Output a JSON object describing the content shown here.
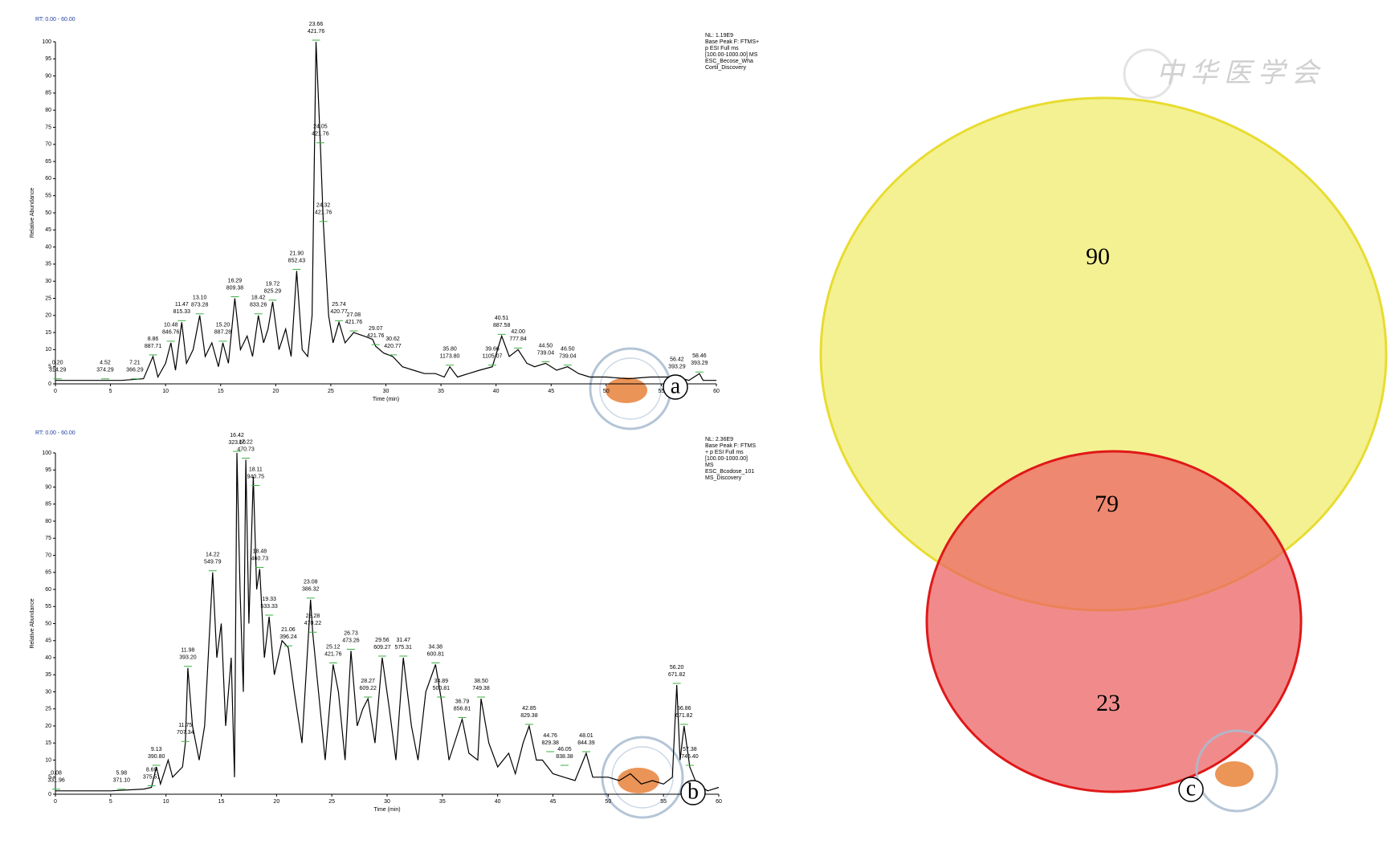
{
  "chart_data": [
    {
      "type": "line",
      "title": "RT: 0.00 - 60.00",
      "xlabel": "Time (min)",
      "ylabel": "Relative Abundance",
      "panel": "a",
      "info": [
        "NL: 1.19E9",
        "Base Peak F: FTMS+",
        "p ESI Full ms",
        "[100.00-1000.00] MS",
        "ESC_Becose_Wha",
        "Cortil_Discovery"
      ],
      "color": "#000000",
      "xlim": [
        0,
        60
      ],
      "ylim": [
        0,
        100
      ],
      "xticks": [
        0,
        5,
        10,
        15,
        20,
        25,
        30,
        35,
        40,
        45,
        50,
        55,
        60
      ],
      "yticks": [
        0,
        5,
        10,
        15,
        20,
        25,
        30,
        35,
        40,
        45,
        50,
        55,
        60,
        65,
        70,
        75,
        80,
        85,
        90,
        95,
        100
      ],
      "x": [
        0,
        3,
        6,
        8,
        8.86,
        9.3,
        10.0,
        10.48,
        10.9,
        11.47,
        11.9,
        12.5,
        13.1,
        13.6,
        14.2,
        14.8,
        15.2,
        15.7,
        16.29,
        16.8,
        17.4,
        17.9,
        18.42,
        18.9,
        19.3,
        19.72,
        20.3,
        20.9,
        21.4,
        21.9,
        22.4,
        22.9,
        23.3,
        23.66,
        24.05,
        24.32,
        24.8,
        25.2,
        25.74,
        26.3,
        27.08,
        28,
        28.8,
        29.07,
        29.8,
        30.62,
        31.5,
        32.5,
        33.5,
        34.5,
        35.3,
        35.8,
        36.5,
        37.5,
        38.5,
        39.66,
        40.51,
        41.2,
        42.0,
        42.8,
        43.5,
        44.5,
        45.5,
        46.5,
        47.5,
        48.5,
        50,
        52,
        54,
        56.42,
        57.5,
        58.46,
        58.8,
        60
      ],
      "values": [
        1,
        1,
        1,
        1.5,
        8,
        2,
        6,
        12,
        4,
        18,
        6,
        10,
        20,
        8,
        12,
        5,
        12,
        6,
        25,
        10,
        14,
        8,
        20,
        12,
        16,
        24,
        10,
        16,
        8,
        33,
        10,
        8,
        20,
        100,
        70,
        47,
        20,
        12,
        18,
        12,
        15,
        14,
        13,
        11,
        9,
        8,
        5,
        4,
        3,
        3,
        2,
        5,
        2,
        3,
        4,
        5,
        14,
        8,
        10,
        6,
        5,
        6,
        4,
        5,
        3,
        2,
        2,
        1.5,
        2,
        2,
        1,
        3,
        1,
        1
      ],
      "annotations": [
        {
          "x": 0.2,
          "y": 1,
          "text": [
            "0.20",
            "314.29"
          ]
        },
        {
          "x": 4.52,
          "y": 1,
          "text": [
            "4.52",
            "374.29"
          ]
        },
        {
          "x": 7.21,
          "y": 1,
          "text": [
            "7.21",
            "366.29"
          ]
        },
        {
          "x": 8.86,
          "y": 8,
          "text": [
            "8.86",
            "887.71"
          ]
        },
        {
          "x": 10.48,
          "y": 12,
          "text": [
            "10.48",
            "846.76"
          ]
        },
        {
          "x": 11.47,
          "y": 18,
          "text": [
            "11.47",
            "815.33"
          ]
        },
        {
          "x": 13.1,
          "y": 20,
          "text": [
            "13.10",
            "873.28"
          ]
        },
        {
          "x": 15.2,
          "y": 12,
          "text": [
            "15.20",
            "887.28"
          ]
        },
        {
          "x": 16.29,
          "y": 25,
          "text": [
            "16.29",
            "809.38"
          ]
        },
        {
          "x": 18.42,
          "y": 20,
          "text": [
            "18.42",
            "833.26"
          ]
        },
        {
          "x": 19.72,
          "y": 24,
          "text": [
            "19.72",
            "825.29"
          ]
        },
        {
          "x": 21.9,
          "y": 33,
          "text": [
            "21.90",
            "852.43"
          ]
        },
        {
          "x": 23.66,
          "y": 100,
          "text": [
            "23.66",
            "421.76"
          ]
        },
        {
          "x": 24.05,
          "y": 70,
          "text": [
            "24.05",
            "421.76"
          ]
        },
        {
          "x": 24.32,
          "y": 47,
          "text": [
            "24.32",
            "421.76"
          ]
        },
        {
          "x": 25.74,
          "y": 18,
          "text": [
            "25.74",
            "420.77"
          ]
        },
        {
          "x": 27.08,
          "y": 15,
          "text": [
            "27.08",
            "421.76"
          ]
        },
        {
          "x": 29.07,
          "y": 11,
          "text": [
            "29.07",
            "421.76"
          ]
        },
        {
          "x": 30.62,
          "y": 8,
          "text": [
            "30.62",
            "420.77"
          ]
        },
        {
          "x": 35.8,
          "y": 5,
          "text": [
            "35.80",
            "1173.80"
          ]
        },
        {
          "x": 39.66,
          "y": 5,
          "text": [
            "39.66",
            "1105.07"
          ]
        },
        {
          "x": 40.51,
          "y": 14,
          "text": [
            "40.51",
            "887.58"
          ]
        },
        {
          "x": 42.0,
          "y": 10,
          "text": [
            "42.00",
            "777.84"
          ]
        },
        {
          "x": 44.5,
          "y": 6,
          "text": [
            "44.50",
            "739.04"
          ]
        },
        {
          "x": 46.5,
          "y": 5,
          "text": [
            "46.50",
            "739.04"
          ]
        },
        {
          "x": 56.42,
          "y": 2,
          "text": [
            "56.42",
            "393.29"
          ]
        },
        {
          "x": 58.46,
          "y": 3,
          "text": [
            "58.46",
            "393.29"
          ]
        }
      ]
    },
    {
      "type": "line",
      "title": "RT: 0.00 - 60.00",
      "xlabel": "Time (min)",
      "ylabel": "Relative Abundance",
      "panel": "b",
      "info": [
        "NL: 2.36E9",
        "Base Peak F: FTMS",
        "+ p ESI Full ms",
        "[100.00-1000.00]",
        "MS",
        "ESC_Bcodose_101",
        "MS_Discovery"
      ],
      "color": "#000000",
      "xlim": [
        0,
        60
      ],
      "ylim": [
        0,
        100
      ],
      "xticks": [
        0,
        5,
        10,
        15,
        20,
        25,
        30,
        35,
        40,
        45,
        50,
        55,
        60
      ],
      "yticks": [
        0,
        5,
        10,
        15,
        20,
        25,
        30,
        35,
        40,
        45,
        50,
        55,
        60,
        65,
        70,
        75,
        80,
        85,
        90,
        95,
        100
      ],
      "x": [
        0,
        5,
        8,
        8.69,
        9.13,
        9.5,
        10.2,
        10.6,
        11.5,
        11.75,
        11.98,
        12.4,
        13.0,
        13.5,
        14.22,
        14.6,
        15.0,
        15.4,
        15.9,
        16.2,
        16.42,
        16.7,
        17.0,
        17.22,
        17.5,
        17.9,
        18.2,
        18.48,
        18.9,
        19.33,
        19.8,
        20.5,
        21.06,
        21.6,
        22.3,
        23.08,
        23.28,
        23.8,
        24.4,
        25.12,
        25.6,
        26.2,
        26.73,
        27.3,
        27.8,
        28.27,
        28.9,
        29.56,
        30.2,
        30.8,
        31.47,
        32.2,
        32.8,
        33.5,
        34.38,
        34.89,
        35.6,
        36.79,
        37.4,
        38.2,
        38.5,
        39.2,
        40,
        41,
        41.6,
        42.3,
        42.85,
        43.5,
        44.05,
        45,
        46,
        47,
        48.01,
        48.6,
        50,
        51,
        52,
        53,
        54,
        55,
        55.8,
        56.2,
        56.5,
        56.86,
        57.38,
        58,
        59,
        60
      ],
      "values": [
        1,
        1,
        1.5,
        2,
        8,
        3,
        10,
        5,
        8,
        15,
        37,
        20,
        10,
        20,
        65,
        40,
        50,
        20,
        40,
        5,
        100,
        60,
        30,
        98,
        50,
        93,
        60,
        66,
        40,
        52,
        35,
        45,
        43,
        30,
        15,
        57,
        47,
        30,
        10,
        38,
        30,
        10,
        42,
        20,
        25,
        28,
        15,
        40,
        25,
        10,
        40,
        20,
        10,
        30,
        38,
        28,
        10,
        22,
        12,
        10,
        28,
        15,
        8,
        12,
        6,
        15,
        20,
        10,
        10,
        6,
        5,
        4,
        12,
        5,
        5,
        4,
        6,
        3,
        4,
        3,
        5,
        32,
        10,
        20,
        8,
        3,
        1,
        2
      ],
      "annotations": [
        {
          "x": 0.08,
          "y": 1,
          "text": [
            "0.08",
            "331.96"
          ]
        },
        {
          "x": 5.98,
          "y": 1,
          "text": [
            "5.98",
            "371.10"
          ]
        },
        {
          "x": 8.69,
          "y": 2,
          "text": [
            "8.69",
            "375.51"
          ]
        },
        {
          "x": 9.13,
          "y": 8,
          "text": [
            "9.13",
            "390.80"
          ]
        },
        {
          "x": 11.75,
          "y": 15,
          "text": [
            "11.75",
            "707.34"
          ]
        },
        {
          "x": 11.98,
          "y": 37,
          "text": [
            "11.98",
            "393.20"
          ]
        },
        {
          "x": 14.22,
          "y": 65,
          "text": [
            "14.22",
            "549.79"
          ]
        },
        {
          "x": 16.42,
          "y": 100,
          "text": [
            "16.42",
            "323.60"
          ]
        },
        {
          "x": 17.22,
          "y": 98,
          "text": [
            "17.22",
            "470.73"
          ]
        },
        {
          "x": 18.11,
          "y": 90,
          "text": [
            "18.11",
            "940.75"
          ]
        },
        {
          "x": 18.48,
          "y": 66,
          "text": [
            "18.48",
            "460.73"
          ]
        },
        {
          "x": 19.33,
          "y": 52,
          "text": [
            "19.33",
            "533.33"
          ]
        },
        {
          "x": 21.06,
          "y": 43,
          "text": [
            "21.06",
            "396.24"
          ]
        },
        {
          "x": 23.08,
          "y": 57,
          "text": [
            "23.08",
            "386.32"
          ]
        },
        {
          "x": 23.28,
          "y": 47,
          "text": [
            "23.28",
            "470.22"
          ]
        },
        {
          "x": 25.12,
          "y": 38,
          "text": [
            "25.12",
            "421.76"
          ]
        },
        {
          "x": 26.73,
          "y": 42,
          "text": [
            "26.73",
            "473.26"
          ]
        },
        {
          "x": 28.27,
          "y": 28,
          "text": [
            "28.27",
            "609.22"
          ]
        },
        {
          "x": 29.56,
          "y": 40,
          "text": [
            "29.56",
            "609.27"
          ]
        },
        {
          "x": 31.47,
          "y": 40,
          "text": [
            "31.47",
            "575.31"
          ]
        },
        {
          "x": 34.38,
          "y": 38,
          "text": [
            "34.38",
            "600.81"
          ]
        },
        {
          "x": 34.89,
          "y": 28,
          "text": [
            "34.89",
            "500.81"
          ]
        },
        {
          "x": 36.79,
          "y": 22,
          "text": [
            "36.79",
            "856.81"
          ]
        },
        {
          "x": 38.5,
          "y": 28,
          "text": [
            "38.50",
            "749.38"
          ]
        },
        {
          "x": 42.85,
          "y": 20,
          "text": [
            "42.85",
            "829.38"
          ]
        },
        {
          "x": 44.76,
          "y": 12,
          "text": [
            "44.76",
            "829.38"
          ]
        },
        {
          "x": 46.05,
          "y": 8,
          "text": [
            "46.05",
            "838.38"
          ]
        },
        {
          "x": 48.01,
          "y": 12,
          "text": [
            "48.01",
            "844.39"
          ]
        },
        {
          "x": 56.2,
          "y": 32,
          "text": [
            "56.20",
            "671.82"
          ]
        },
        {
          "x": 56.86,
          "y": 20,
          "text": [
            "56.86",
            "671.82"
          ]
        },
        {
          "x": 57.38,
          "y": 8,
          "text": [
            "57.38",
            "746.40"
          ]
        }
      ]
    },
    {
      "type": "venn",
      "panel": "c",
      "watermark": "中华医学会",
      "values": [
        90,
        79,
        23
      ],
      "colors": [
        "#f2ee80",
        "#ec6464"
      ],
      "edge_colors": [
        "#e8dc30",
        "#e01818"
      ]
    }
  ]
}
